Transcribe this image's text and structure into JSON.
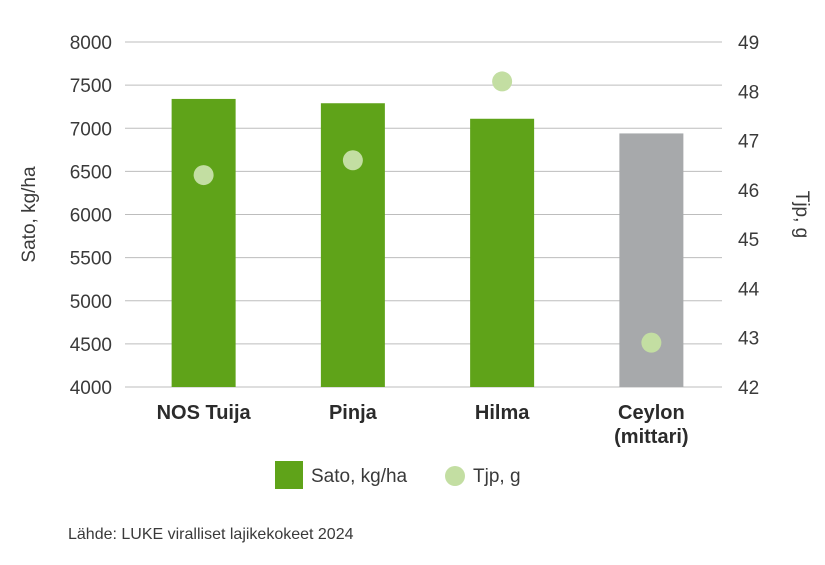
{
  "chart_data": {
    "type": "bar",
    "categories": [
      [
        "NOS Tuija"
      ],
      [
        "Pinja"
      ],
      [
        "Hilma"
      ],
      [
        "Ceylon",
        "(mittari)"
      ]
    ],
    "series": [
      {
        "name": "Sato, kg/ha",
        "kind": "bar",
        "axis": "left",
        "values": [
          7340,
          7290,
          7110,
          6940
        ],
        "colors": [
          "#5fa319",
          "#5fa319",
          "#5fa319",
          "#a7a9ab"
        ]
      },
      {
        "name": "Tjp, g",
        "kind": "scatter",
        "axis": "right",
        "values": [
          46.3,
          46.6,
          48.2,
          42.9
        ],
        "color": "#c3dea2"
      }
    ],
    "y_left": {
      "label": "Sato, kg/ha",
      "lim": [
        4000,
        8000
      ],
      "ticks": [
        4000,
        4500,
        5000,
        5500,
        6000,
        6500,
        7000,
        7500,
        8000
      ]
    },
    "y_right": {
      "label": "Tjp, g",
      "lim": [
        42,
        49
      ],
      "ticks": [
        42,
        43,
        44,
        45,
        46,
        47,
        48,
        49
      ]
    },
    "grid": true,
    "legend": "bottom-center"
  },
  "source": "Lähde: LUKE viralliset lajikekokeet 2024",
  "colors": {
    "grid": "#bdbdbd",
    "text": "#3a3a3a"
  }
}
